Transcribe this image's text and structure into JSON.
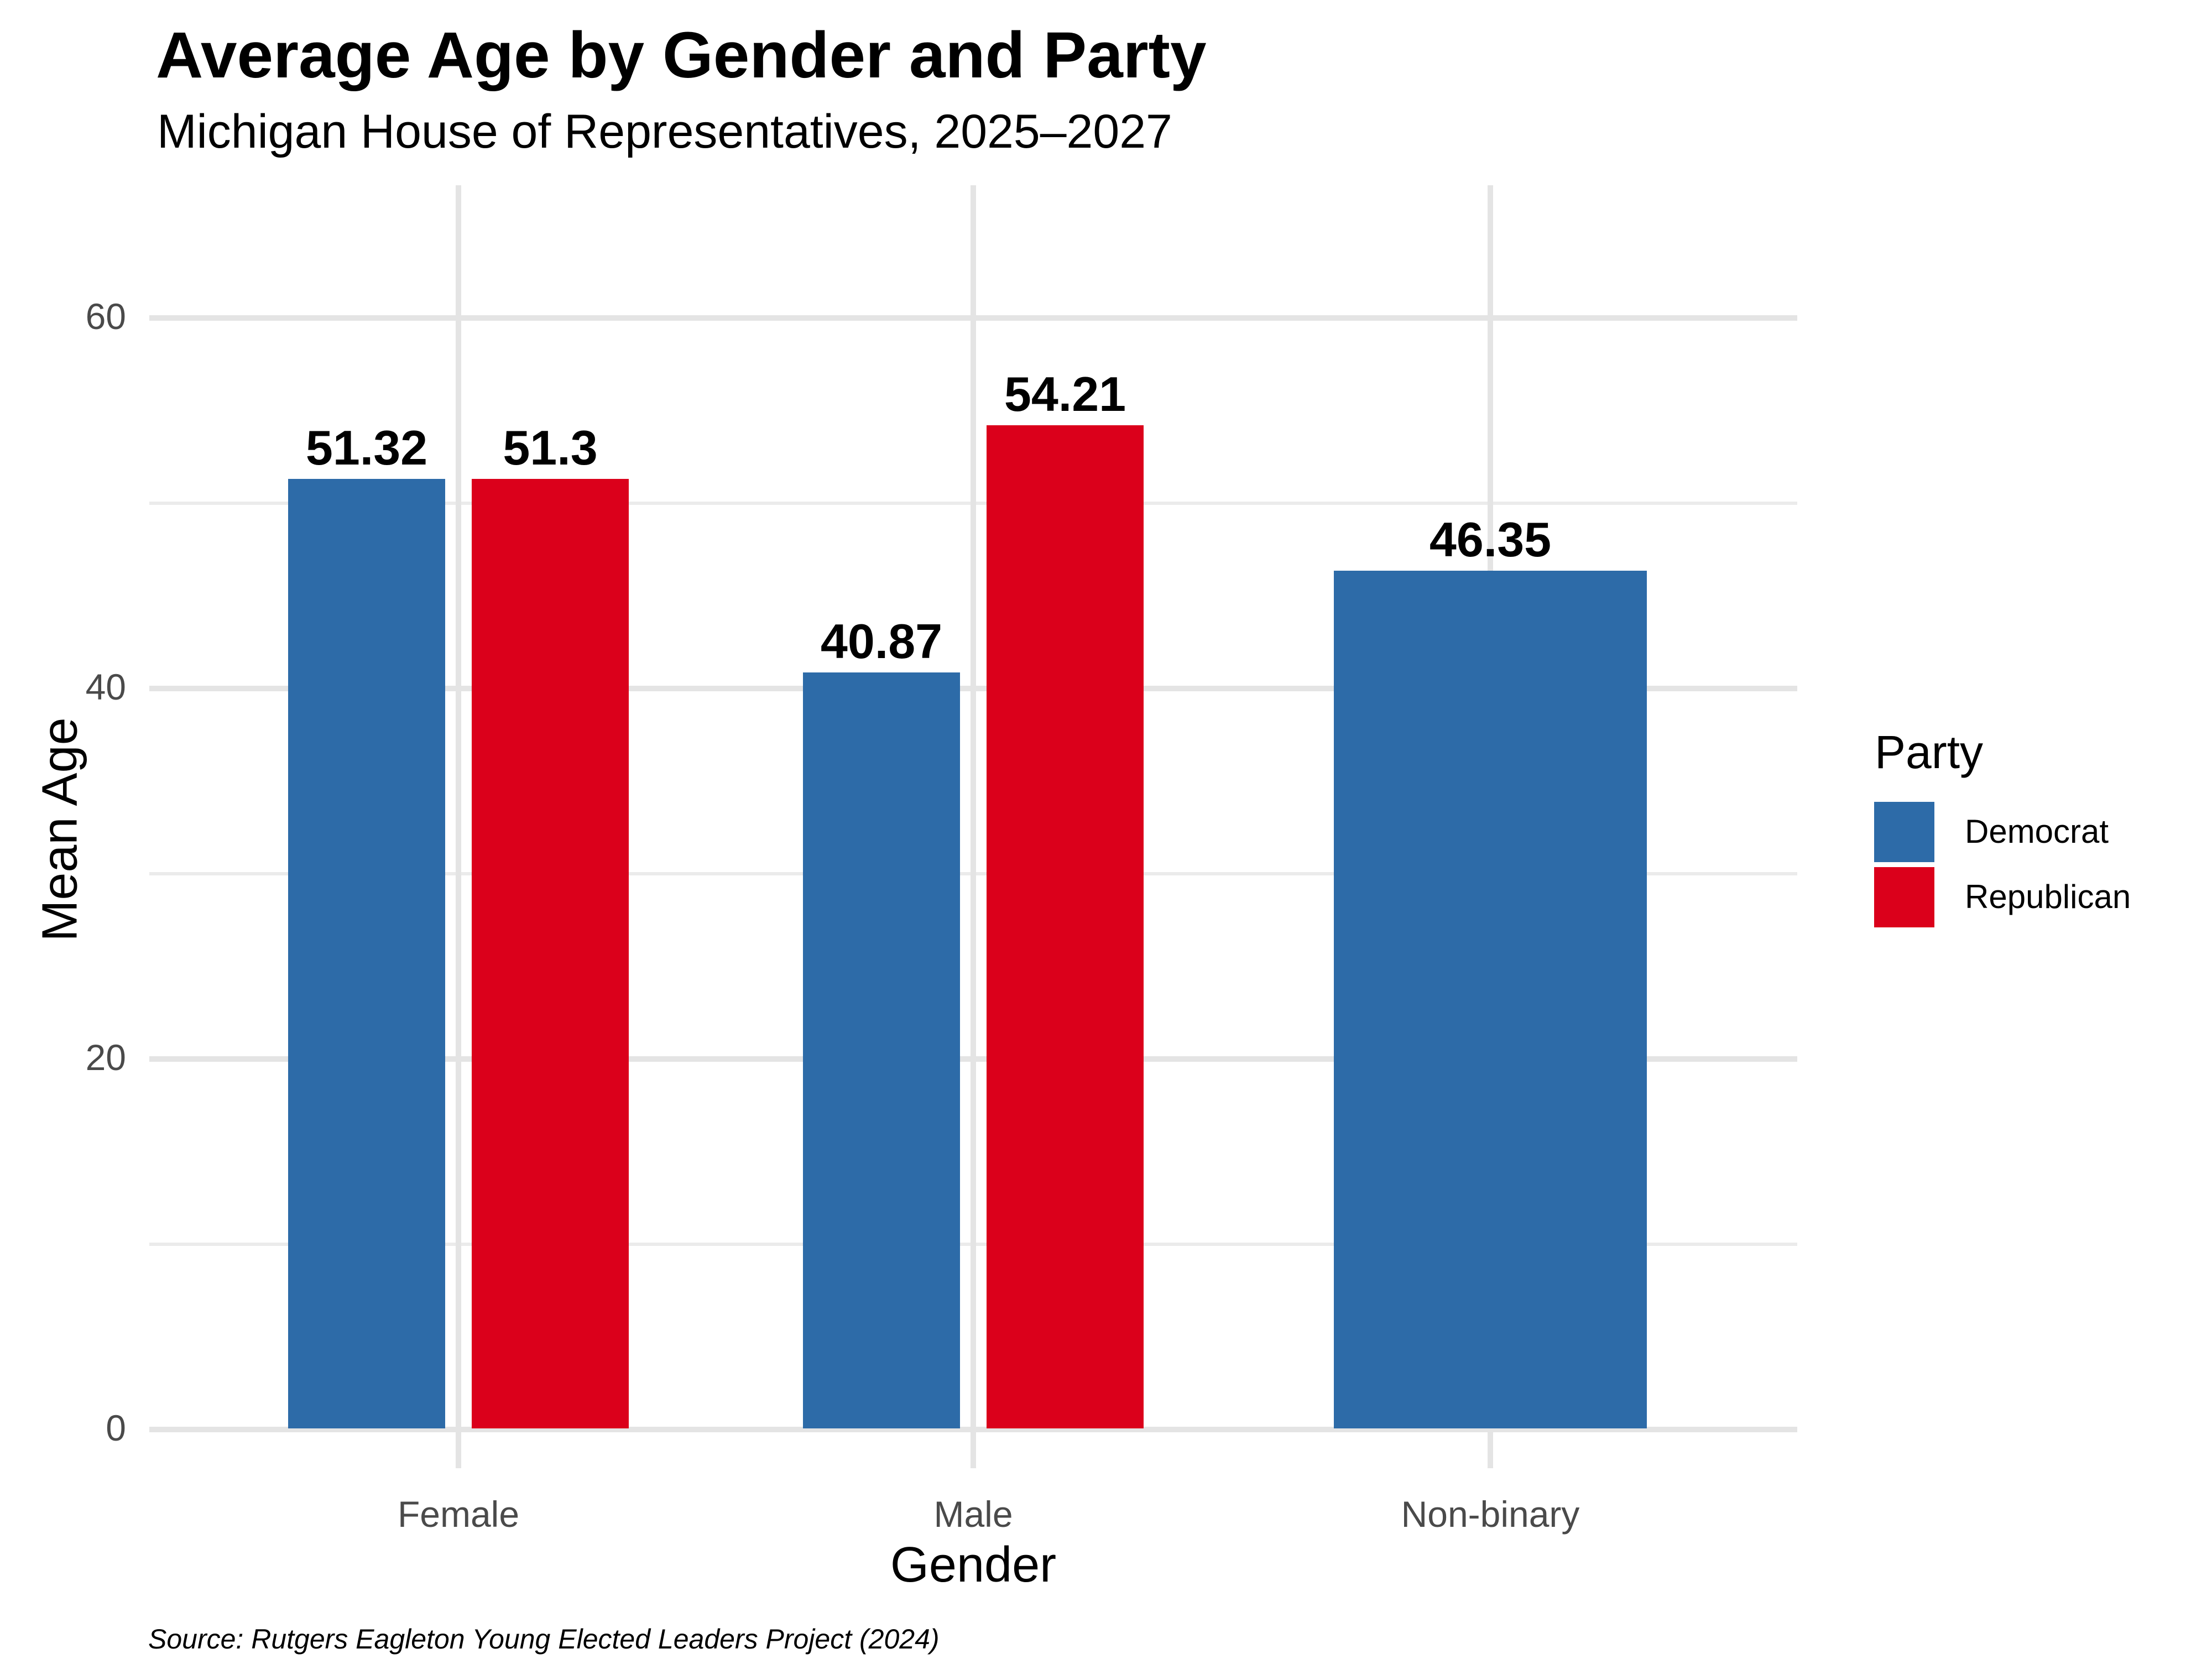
{
  "header": {
    "title": "Average Age by Gender and Party",
    "subtitle": "Michigan House of Representatives, 2025–2027"
  },
  "chart_data": {
    "type": "bar",
    "title": "Average Age by Gender and Party",
    "subtitle": "Michigan House of Representatives, 2025–2027",
    "xlabel": "Gender",
    "ylabel": "Mean Age",
    "categories": [
      "Female",
      "Male",
      "Non-binary"
    ],
    "series": [
      {
        "name": "Democrat",
        "color": "#2d6ba8",
        "values": [
          51.32,
          40.87,
          46.35
        ],
        "labels": [
          "51.32",
          "40.87",
          "46.35"
        ]
      },
      {
        "name": "Republican",
        "color": "#db001b",
        "values": [
          51.3,
          54.21,
          null
        ],
        "labels": [
          "51.3",
          "54.21",
          null
        ]
      }
    ],
    "ylim": [
      0,
      60
    ],
    "yticks": [
      0,
      20,
      40,
      60
    ],
    "yticks_minor": [
      10,
      30,
      50
    ],
    "grid": true,
    "legend": {
      "title": "Party",
      "position": "right",
      "entries": [
        "Democrat",
        "Republican"
      ]
    }
  },
  "source_note": "Source: Rutgers Eagleton Young Elected Leaders Project (2024)",
  "colors": {
    "democrat": "#2d6ba8",
    "republican": "#db001b",
    "grid_major": "#e4e4e4",
    "grid_minor": "#ebebeb",
    "tick_label": "#4a4a4a",
    "background": "#ffffff"
  }
}
